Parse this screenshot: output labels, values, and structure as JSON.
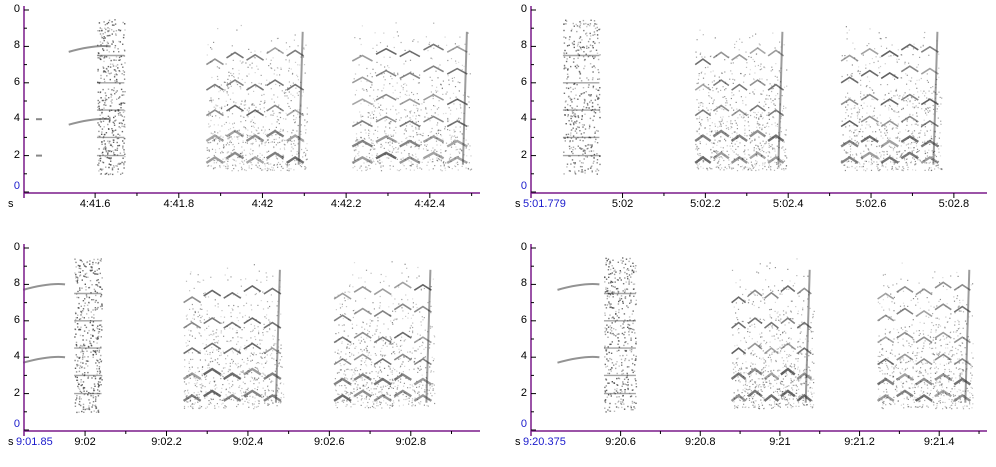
{
  "spectrograms": [
    {
      "id": "tl",
      "y_ticks": [
        "8",
        "6",
        "4",
        "2"
      ],
      "y_zero_top": "0",
      "y_zero_bottom": "0",
      "unit": "s",
      "start_label": "",
      "x_ticks": [
        "4:41.6",
        "4:41.8",
        "4:42",
        "4:42.2",
        "4:42.4"
      ],
      "x_tick_seconds": [
        281.6,
        281.8,
        282.0,
        282.2,
        282.4
      ],
      "x_range_seconds": [
        281.43,
        282.52
      ],
      "y_range_khz": [
        0,
        10
      ]
    },
    {
      "id": "tr",
      "y_ticks": [
        "8",
        "6",
        "4",
        "2"
      ],
      "y_zero_top": "0",
      "y_zero_bottom": "0",
      "unit": "s",
      "start_label": "5:01.779",
      "x_ticks": [
        "5:02",
        "5:02.2",
        "5:02.4",
        "5:02.6",
        "5:02.8"
      ],
      "x_tick_seconds": [
        302.0,
        302.2,
        302.4,
        302.6,
        302.8
      ],
      "x_range_seconds": [
        301.779,
        302.88
      ],
      "y_range_khz": [
        0,
        10
      ]
    },
    {
      "id": "bl",
      "y_ticks": [
        "8",
        "6",
        "4",
        "2"
      ],
      "y_zero_top": "0",
      "y_zero_bottom": "0",
      "unit": "s",
      "start_label": "9:01.85",
      "x_ticks": [
        "9:02",
        "9:02.2",
        "9:02.4",
        "9:02.6",
        "9:02.8"
      ],
      "x_tick_seconds": [
        542.0,
        542.2,
        542.4,
        542.6,
        542.8
      ],
      "x_range_seconds": [
        541.85,
        542.97
      ],
      "y_range_khz": [
        0,
        10
      ]
    },
    {
      "id": "br",
      "y_ticks": [
        "8",
        "6",
        "4",
        "2"
      ],
      "y_zero_top": "0",
      "y_zero_bottom": "0",
      "unit": "s",
      "start_label": "9:20.375",
      "x_ticks": [
        "9:20.6",
        "9:20.8",
        "9:21",
        "9:21.2",
        "9:21.4"
      ],
      "x_tick_seconds": [
        560.6,
        560.8,
        561.0,
        561.2,
        561.4
      ],
      "x_range_seconds": [
        560.375,
        561.52
      ],
      "y_range_khz": [
        0,
        10
      ]
    }
  ],
  "colors": {
    "axis": "#7a1a8a",
    "ink": "#3a3a3a",
    "label_blue": "#1a1acc"
  }
}
